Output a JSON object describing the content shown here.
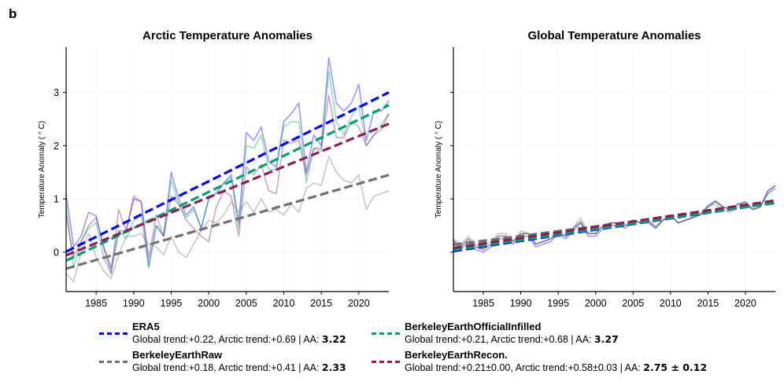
{
  "panel_label": "b",
  "y_label": "Temperature Anomaly ($^\\circ$C)",
  "y_label_display": "Temperature Anomaly ( ° C)",
  "series_styles": [
    {
      "name": "ERA5",
      "color": "#0000ff"
    },
    {
      "name": "BerkeleyEarthRaw",
      "color": "#707070"
    },
    {
      "name": "BerkeleyEarthOfficialInfilled",
      "color": "#009e73"
    },
    {
      "name": "BerkeleyEarthRecon.",
      "color": "#882255"
    }
  ],
  "legend": [
    {
      "name": "ERA5",
      "stats": "Global trend:+0.22, Arctic trend:+0.69 | AA: ",
      "aa": "3.22",
      "color": "#0000ff"
    },
    {
      "name": "BerkeleyEarthRaw",
      "stats": "Global trend:+0.18, Arctic trend:+0.41 | AA: ",
      "aa": "2.33",
      "color": "#707070"
    },
    {
      "name": "BerkeleyEarthOfficialInfilled",
      "stats": "Global trend:+0.21, Arctic trend:+0.68 | AA: ",
      "aa": "3.27",
      "color": "#009e73"
    },
    {
      "name": "BerkeleyEarthRecon.",
      "stats": "Global trend:+0.21±0.00, Arctic trend:+0.58±0.03 | AA: ",
      "aa": "2.75 ± 0.12",
      "color": "#882255"
    }
  ],
  "chart_data": [
    {
      "type": "line",
      "title": "Arctic Temperature Anomalies",
      "ylabel": "Temperature Anomaly ( ° C)",
      "xlim": [
        1981,
        2024
      ],
      "ylim": [
        -0.74,
        3.85
      ],
      "xticks": [
        1985,
        1990,
        1995,
        2000,
        2005,
        2010,
        2015,
        2020
      ],
      "yticks": [
        0,
        1,
        2,
        3
      ],
      "show_ytick_labels": true,
      "grid": true,
      "x_start": 1981,
      "series": [
        {
          "name": "ERA5",
          "values": [
            1.1,
            0.1,
            0.3,
            0.75,
            0.68,
            0.1,
            -0.3,
            0.4,
            0.4,
            1.0,
            0.95,
            -0.25,
            0.5,
            0.3,
            1.5,
            1.0,
            0.7,
            0.85,
            0.45,
            1.0,
            1.1,
            1.3,
            1.45,
            0.55,
            2.25,
            2.1,
            2.35,
            1.7,
            1.6,
            2.45,
            2.6,
            2.8,
            1.5,
            2.2,
            2.0,
            3.65,
            2.8,
            2.65,
            2.8,
            3.15,
            2.1,
            2.65,
            2.65,
            2.85
          ],
          "trend": [
            0.01,
            3.0
          ]
        },
        {
          "name": "BerkeleyEarthRaw",
          "values": [
            -0.4,
            -0.55,
            0.0,
            0.35,
            -0.1,
            -0.35,
            -0.5,
            -0.05,
            0.3,
            0.3,
            0.35,
            0.15,
            0.1,
            -0.05,
            0.3,
            0.0,
            -0.1,
            0.15,
            0.4,
            0.6,
            0.55,
            0.7,
            0.95,
            0.75,
            0.95,
            0.75,
            1.0,
            0.75,
            0.8,
            0.7,
            0.9,
            0.75,
            1.2,
            1.3,
            1.25,
            1.8,
            1.5,
            1.35,
            1.3,
            1.45,
            0.8,
            1.05,
            1.1,
            1.15
          ],
          "trend": [
            -0.31,
            1.45
          ]
        },
        {
          "name": "BerkeleyEarthOfficialInfilled",
          "values": [
            0.9,
            -0.3,
            0.2,
            0.45,
            0.55,
            -0.1,
            -0.4,
            0.4,
            0.25,
            0.6,
            0.7,
            -0.3,
            0.5,
            0.3,
            1.35,
            0.9,
            0.65,
            0.8,
            0.45,
            1.0,
            1.1,
            1.3,
            1.4,
            0.45,
            2.0,
            1.95,
            2.2,
            1.55,
            1.55,
            2.35,
            2.45,
            2.45,
            1.3,
            1.95,
            1.9,
            3.4,
            2.45,
            2.2,
            2.55,
            2.75,
            2.0,
            2.2,
            2.4,
            2.6
          ],
          "trend": [
            -0.16,
            2.76
          ]
        },
        {
          "name": "BerkeleyEarthRecon.",
          "values": [
            0.7,
            -0.1,
            0.2,
            0.5,
            0.65,
            0.1,
            -0.4,
            0.8,
            0.4,
            1.05,
            0.95,
            -0.1,
            0.7,
            0.3,
            1.05,
            0.9,
            0.6,
            0.45,
            0.3,
            0.2,
            0.85,
            1.15,
            1.05,
            0.3,
            1.6,
            1.45,
            1.65,
            1.15,
            1.1,
            2.1,
            2.05,
            2.1,
            1.45,
            1.95,
            1.95,
            2.95,
            2.15,
            2.15,
            2.45,
            2.35,
            2.0,
            2.2,
            2.3,
            2.6
          ],
          "trend": [
            -0.06,
            2.41
          ]
        }
      ]
    },
    {
      "type": "line",
      "title": "Global Temperature Anomalies",
      "ylabel": "Temperature Anomaly ( ° C)",
      "xlim": [
        1981,
        2024
      ],
      "ylim": [
        -0.74,
        3.85
      ],
      "xticks": [
        1985,
        1990,
        1995,
        2000,
        2005,
        2010,
        2015,
        2020
      ],
      "yticks": [
        0,
        1,
        2,
        3
      ],
      "show_ytick_labels": false,
      "grid": true,
      "x_start": 1981,
      "series": [
        {
          "name": "ERA5",
          "values": [
            0.22,
            0.05,
            0.2,
            0.05,
            0.0,
            0.1,
            0.25,
            0.25,
            0.15,
            0.3,
            0.3,
            0.1,
            0.15,
            0.2,
            0.35,
            0.25,
            0.4,
            0.55,
            0.3,
            0.3,
            0.45,
            0.5,
            0.5,
            0.45,
            0.6,
            0.55,
            0.55,
            0.45,
            0.6,
            0.7,
            0.55,
            0.6,
            0.65,
            0.7,
            0.85,
            0.95,
            0.85,
            0.8,
            0.9,
            0.95,
            0.8,
            0.85,
            1.15,
            1.25
          ],
          "trend": [
            0.02,
            0.93
          ]
        },
        {
          "name": "BerkeleyEarthRaw",
          "values": [
            0.25,
            0.15,
            0.3,
            0.15,
            0.1,
            0.2,
            0.35,
            0.35,
            0.2,
            0.4,
            0.35,
            0.15,
            0.2,
            0.25,
            0.4,
            0.3,
            0.45,
            0.65,
            0.35,
            0.35,
            0.5,
            0.55,
            0.55,
            0.5,
            0.6,
            0.55,
            0.6,
            0.45,
            0.6,
            0.7,
            0.55,
            0.6,
            0.65,
            0.7,
            0.85,
            0.9,
            0.8,
            0.75,
            0.85,
            0.9,
            0.8,
            0.85,
            1.1,
            1.2
          ],
          "trend": [
            0.14,
            0.92
          ]
        },
        {
          "name": "BerkeleyEarthOfficialInfilled",
          "values": [
            0.2,
            0.1,
            0.25,
            0.1,
            0.05,
            0.15,
            0.3,
            0.3,
            0.2,
            0.35,
            0.35,
            0.15,
            0.2,
            0.25,
            0.35,
            0.3,
            0.45,
            0.55,
            0.35,
            0.35,
            0.5,
            0.55,
            0.55,
            0.5,
            0.6,
            0.55,
            0.6,
            0.45,
            0.6,
            0.7,
            0.55,
            0.6,
            0.65,
            0.7,
            0.85,
            0.95,
            0.85,
            0.8,
            0.9,
            0.9,
            0.8,
            0.85,
            1.1,
            1.2
          ],
          "trend": [
            0.04,
            0.93
          ]
        },
        {
          "name": "BerkeleyEarthRecon.",
          "values": [
            0.22,
            0.1,
            0.25,
            0.1,
            0.05,
            0.15,
            0.3,
            0.3,
            0.2,
            0.35,
            0.35,
            0.15,
            0.2,
            0.25,
            0.38,
            0.3,
            0.45,
            0.58,
            0.35,
            0.35,
            0.5,
            0.55,
            0.55,
            0.5,
            0.6,
            0.55,
            0.6,
            0.48,
            0.6,
            0.7,
            0.55,
            0.6,
            0.65,
            0.72,
            0.88,
            0.97,
            0.85,
            0.8,
            0.9,
            0.93,
            0.8,
            0.85,
            1.15,
            1.25
          ],
          "trend": [
            0.08,
            0.97
          ]
        }
      ]
    }
  ]
}
